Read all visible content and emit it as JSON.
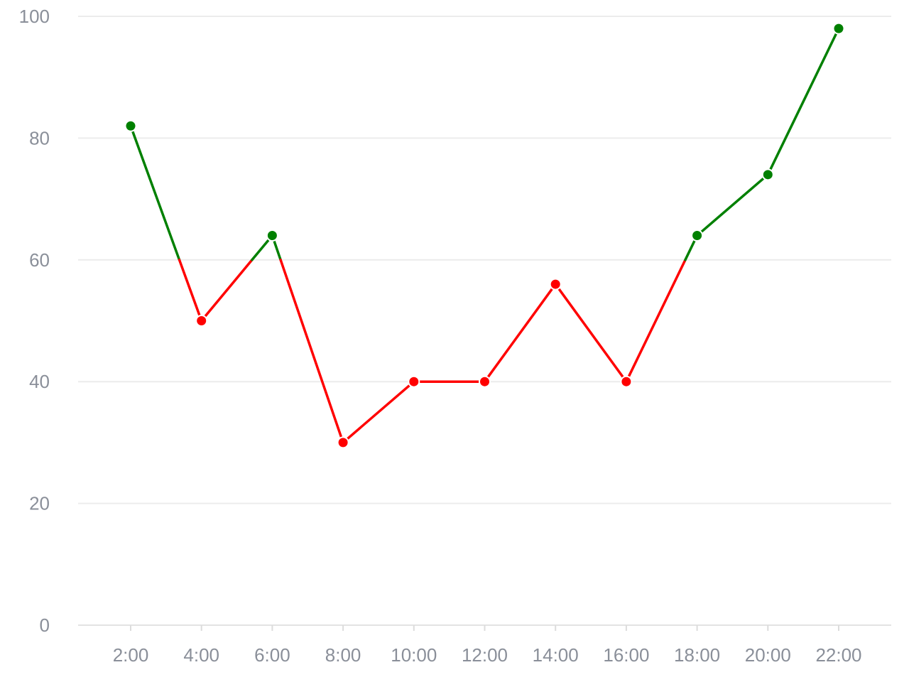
{
  "chart_data": {
    "type": "line",
    "title": "",
    "xlabel": "",
    "ylabel": "",
    "categories": [
      "2:00",
      "4:00",
      "6:00",
      "8:00",
      "10:00",
      "12:00",
      "14:00",
      "16:00",
      "18:00",
      "20:00",
      "22:00"
    ],
    "series": [
      {
        "values": [
          82,
          50,
          64,
          30,
          40,
          40,
          56,
          40,
          64,
          74,
          98
        ]
      }
    ],
    "ylim": [
      0,
      100
    ],
    "yticks": [
      0,
      20,
      40,
      60,
      80,
      100
    ],
    "threshold": 60,
    "grid": true,
    "legend": "none",
    "colors": {
      "above_threshold": "#008000",
      "below_threshold": "#ff0000",
      "grid": "#ececec",
      "tick_text": "#8a8f99"
    }
  }
}
